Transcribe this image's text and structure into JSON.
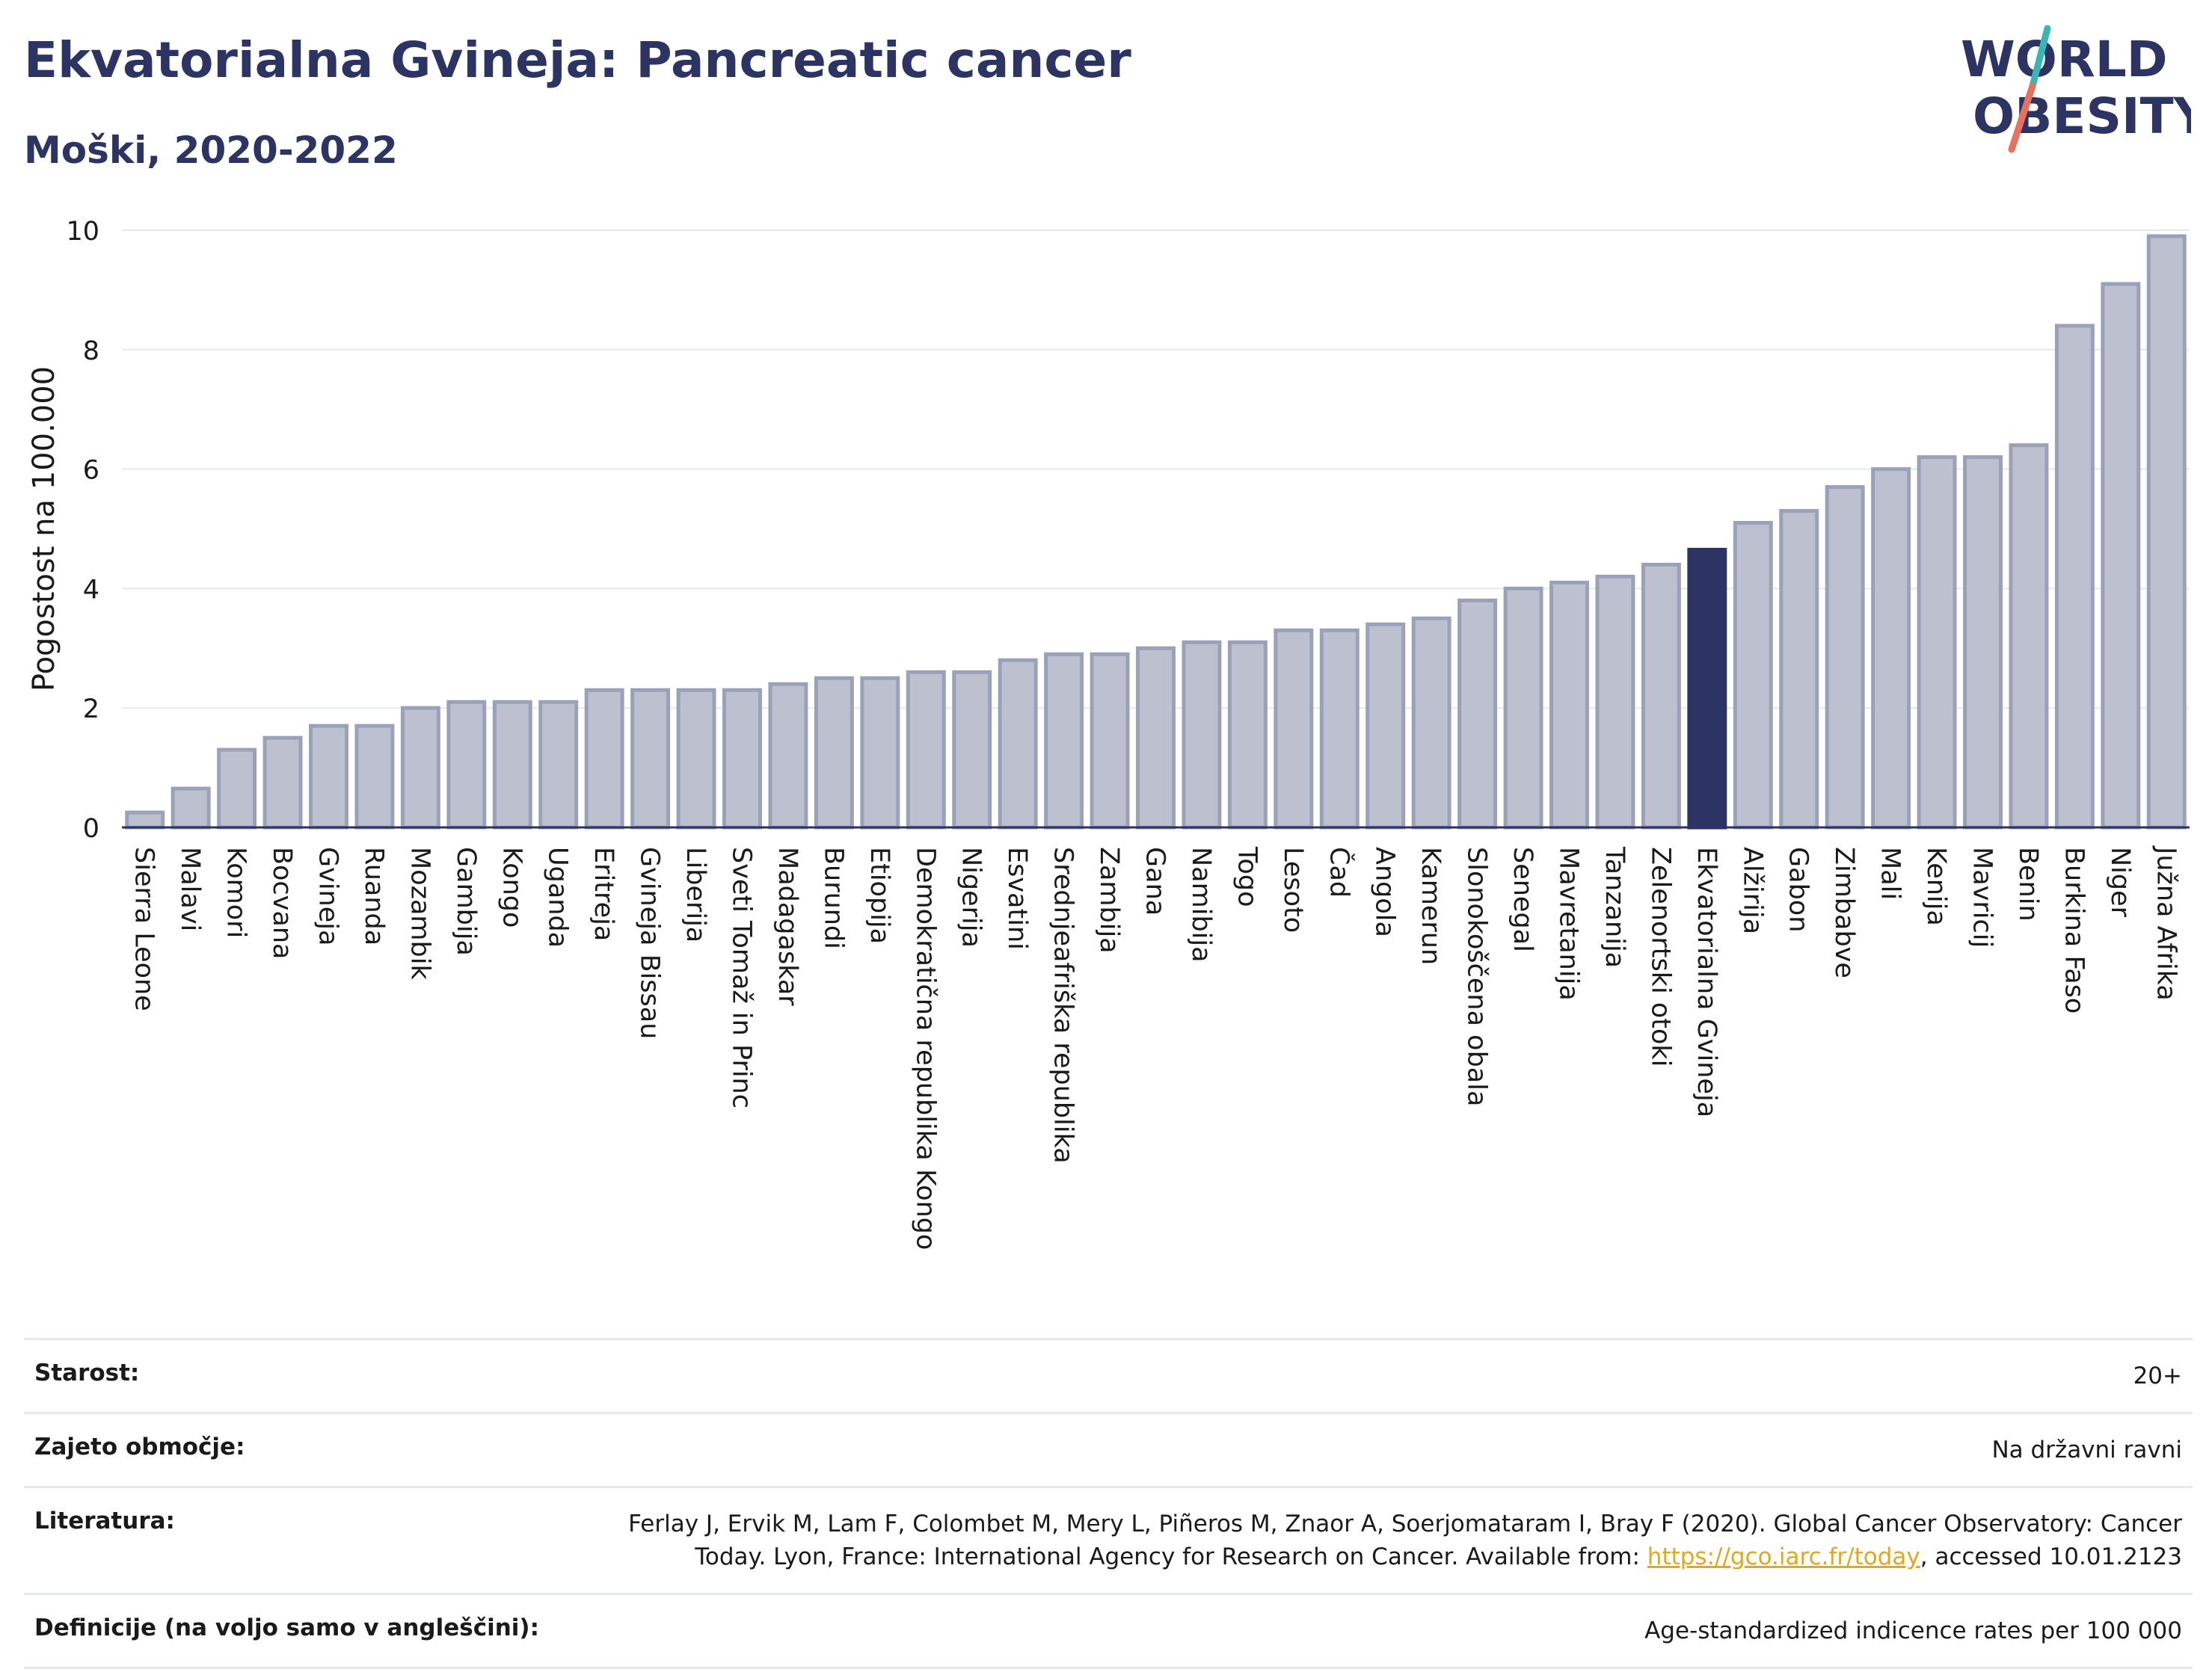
{
  "header": {
    "title": "Ekvatorialna Gvineja: Pancreatic cancer",
    "subtitle": "Moški, 2020-2022"
  },
  "logo": {
    "line1": "WORLD",
    "line2": "OBESITY",
    "colors": {
      "text": "#2b3462",
      "teal": "#38b6b6",
      "coral": "#e8705f"
    }
  },
  "colors": {
    "bar_default": "#bcc0cf",
    "bar_stroke": "#9ba1b8",
    "bar_highlight": "#2b3462",
    "grid": "#e6eaee",
    "axis": "#2b3462"
  },
  "chart_data": {
    "type": "bar",
    "ylabel": "Pogostost na 100.000",
    "ylim": [
      0,
      10
    ],
    "yticks": [
      0,
      2,
      4,
      6,
      8,
      10
    ],
    "grid": true,
    "highlight": "Ekvatorialna Gvineja",
    "categories": [
      "Sierra Leone",
      "Malavi",
      "Komori",
      "Bocvana",
      "Gvineja",
      "Ruanda",
      "Mozambik",
      "Gambija",
      "Kongo",
      "Uganda",
      "Eritreja",
      "Gvineja Bissau",
      "Liberija",
      "Sveti Tomaž in Princ",
      "Madagaskar",
      "Burundi",
      "Etiopija",
      "Demokratična republika Kongo",
      "Nigerija",
      "Esvatini",
      "Srednjeafriška republika",
      "Zambija",
      "Gana",
      "Namibija",
      "Togo",
      "Lesoto",
      "Čad",
      "Angola",
      "Kamerun",
      "Slonokoščena obala",
      "Senegal",
      "Mavretanija",
      "Tanzanija",
      "Zelenortski otoki",
      "Ekvatorialna Gvineja",
      "Alžirija",
      "Gabon",
      "Zimbabve",
      "Mali",
      "Kenija",
      "Mavricij",
      "Benin",
      "Burkina Faso",
      "Niger",
      "Južna Afrika"
    ],
    "values": [
      0.25,
      0.65,
      1.3,
      1.5,
      1.7,
      1.7,
      2.0,
      2.1,
      2.1,
      2.1,
      2.3,
      2.3,
      2.3,
      2.3,
      2.4,
      2.5,
      2.5,
      2.6,
      2.6,
      2.8,
      2.9,
      2.9,
      3.0,
      3.1,
      3.1,
      3.3,
      3.3,
      3.4,
      3.5,
      3.8,
      4.0,
      4.1,
      4.2,
      4.4,
      4.65,
      5.1,
      5.3,
      5.7,
      6.0,
      6.2,
      6.2,
      6.4,
      8.4,
      9.1,
      9.9
    ]
  },
  "meta": {
    "age_label": "Starost:",
    "age_value": "20+",
    "coverage_label": "Zajeto območje:",
    "coverage_value": "Na državni ravni",
    "reference_label": "Literatura:",
    "reference_text_1": "Ferlay J, Ervik M, Lam F, Colombet M, Mery L, Piñeros M, Znaor A, Soerjomataram I, Bray F (2020). Global Cancer Observatory: Cancer Today. Lyon, France: International Agency for Research on Cancer. Available from: ",
    "reference_link": "https://gco.iarc.fr/today",
    "reference_text_2": ", accessed 10.01.2123",
    "definitions_label": "Definicije (na voljo samo v angleščini):",
    "definitions_value": "Age-standardized indicence rates per 100 000"
  }
}
